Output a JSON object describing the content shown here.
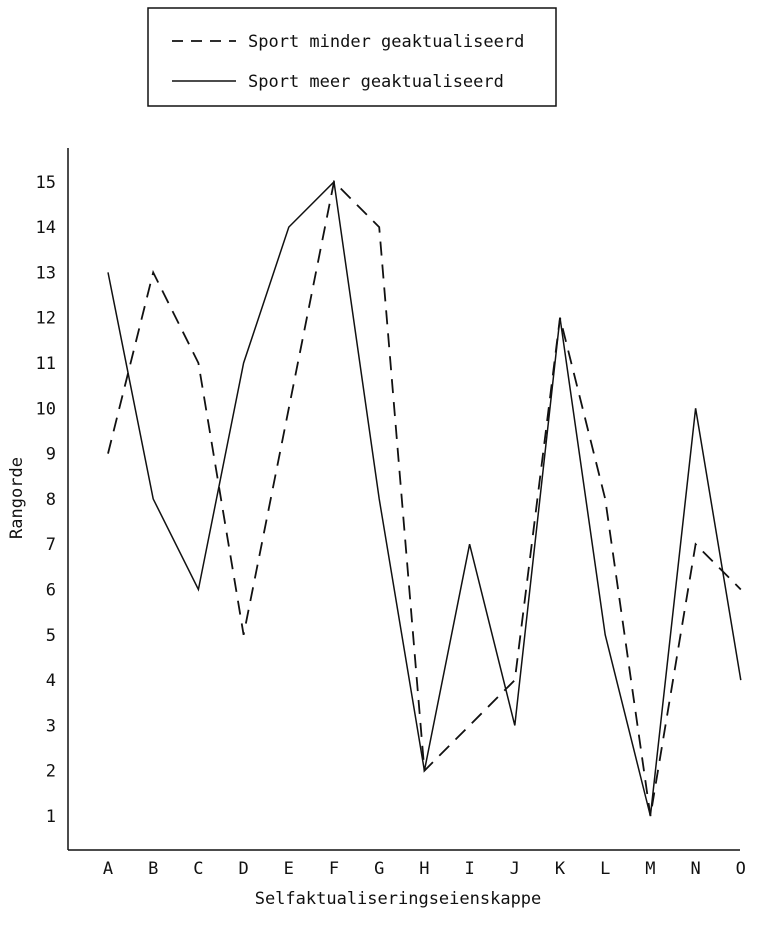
{
  "chart_data": {
    "type": "line",
    "categories": [
      "A",
      "B",
      "C",
      "D",
      "E",
      "F",
      "G",
      "H",
      "I",
      "J",
      "K",
      "L",
      "M",
      "N",
      "O"
    ],
    "yticks": [
      1,
      2,
      3,
      4,
      5,
      6,
      7,
      8,
      9,
      10,
      11,
      12,
      13,
      14,
      15
    ],
    "ylim": [
      0,
      15.5
    ],
    "xlabel": "Selfaktualiseringseienskappe",
    "ylabel": "Rangorde",
    "grid": false,
    "legend_position": "top-center",
    "series": [
      {
        "name": "Sport minder geaktualiseerd",
        "style": "dashed",
        "color": "#111111",
        "values": [
          9,
          13,
          11,
          5,
          10,
          15,
          14,
          2,
          3,
          4,
          12,
          8,
          1,
          7,
          6
        ]
      },
      {
        "name": "Sport meer geaktualiseerd",
        "style": "solid",
        "color": "#111111",
        "values": [
          13,
          8,
          6,
          11,
          14,
          15,
          8,
          2,
          7,
          3,
          12,
          5,
          1,
          10,
          4
        ]
      }
    ]
  }
}
